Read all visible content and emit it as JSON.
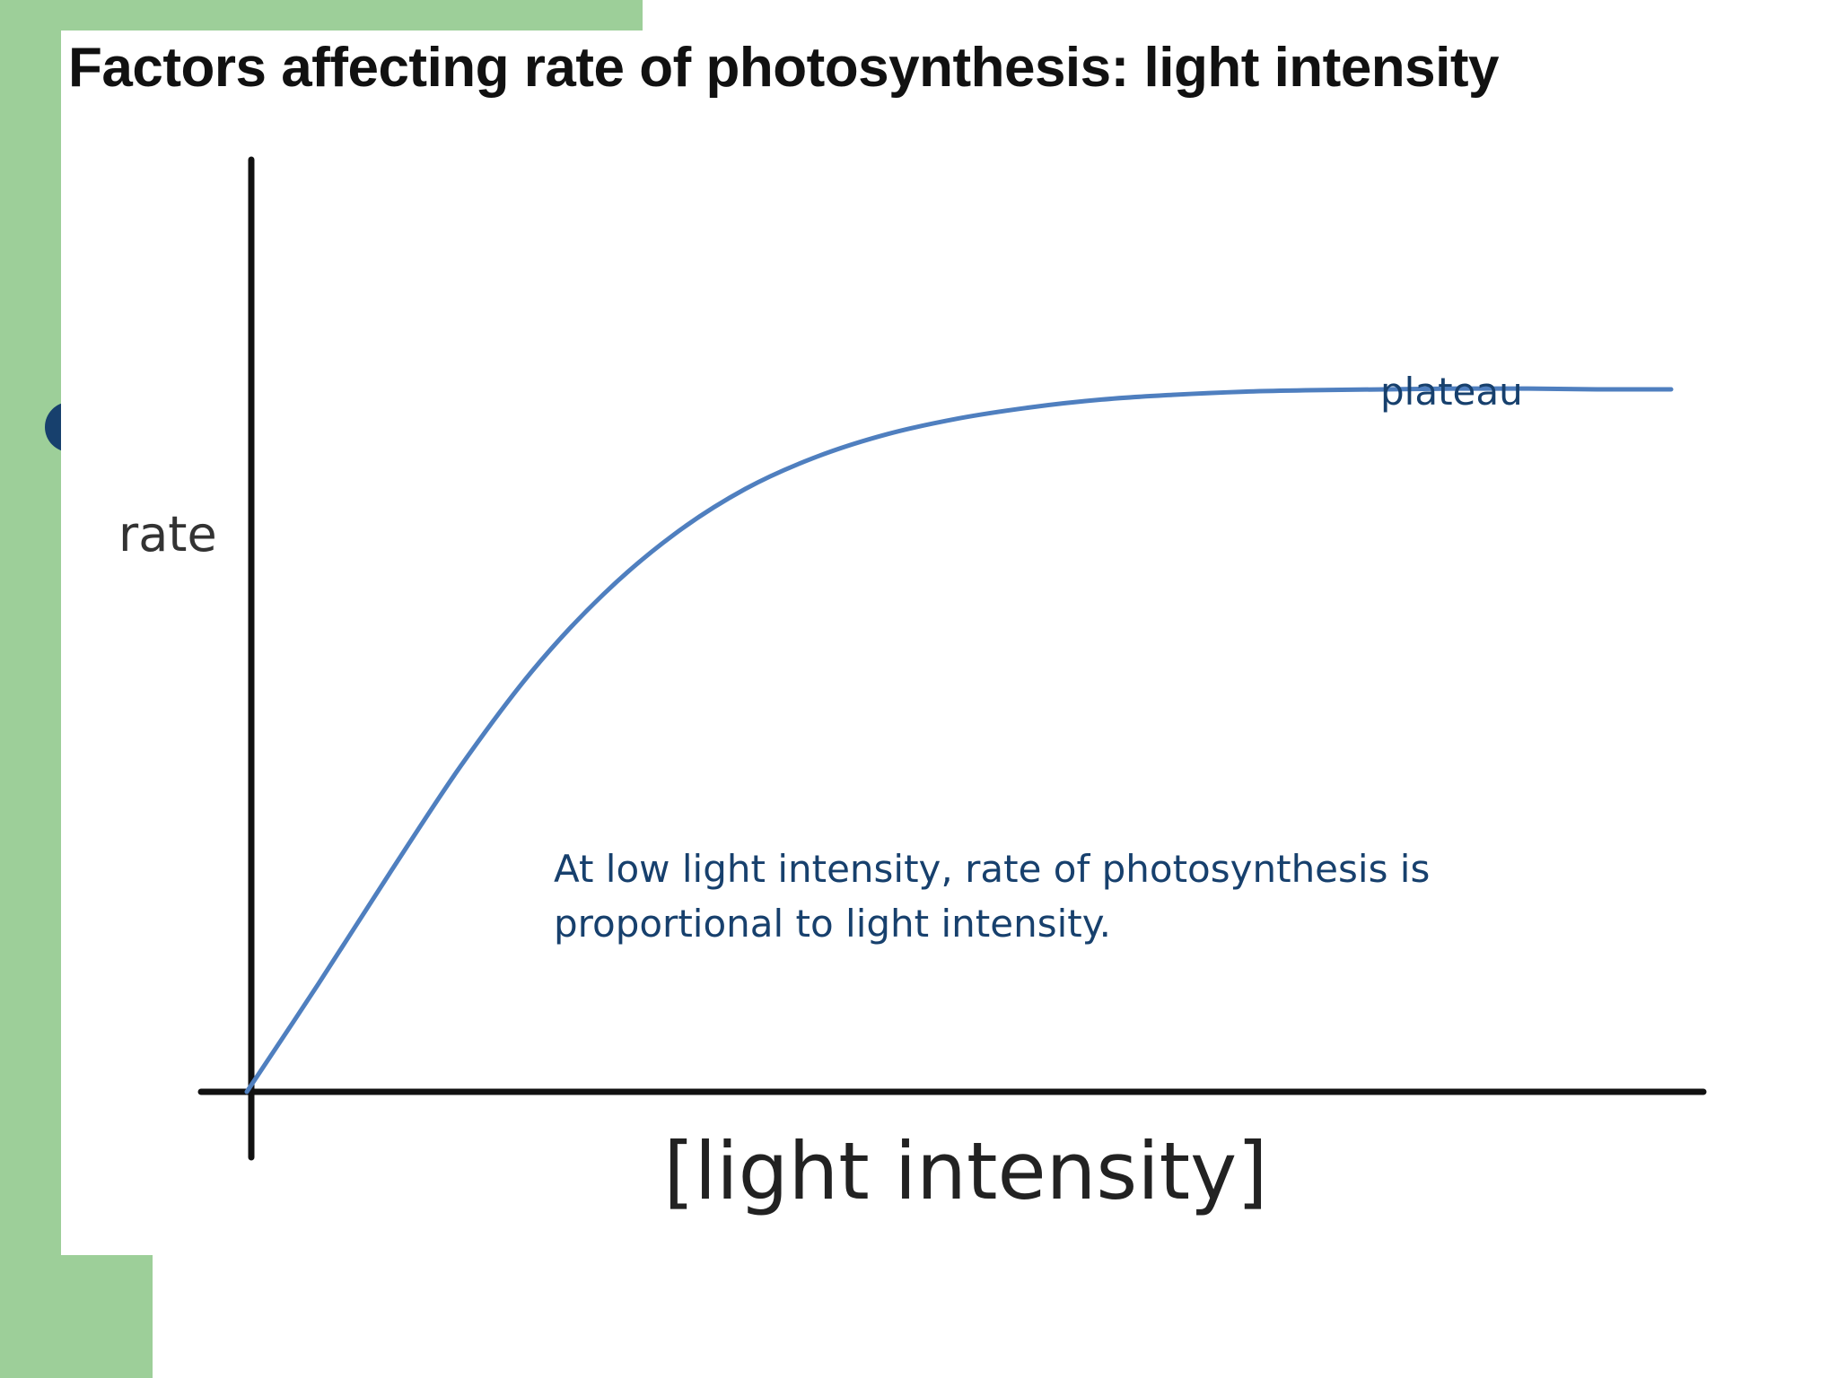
{
  "slide": {
    "title": "Factors affecting rate of photosynthesis: light intensity"
  },
  "chart_data": {
    "type": "line",
    "title": "Factors affecting rate of photosynthesis: light intensity",
    "xlabel": "[light intensity]",
    "ylabel": "rate",
    "axes_ticks": false,
    "grid": false,
    "series": [
      {
        "color": "#4f7fbf",
        "x": [
          0,
          0.05,
          0.1,
          0.15,
          0.2,
          0.25,
          0.3,
          0.35,
          0.4,
          0.45,
          0.5,
          0.55,
          0.6,
          0.65,
          0.7,
          0.75,
          0.8,
          0.85,
          0.9,
          0.95,
          1.0
        ],
        "y": [
          0.0,
          0.137,
          0.278,
          0.415,
          0.536,
          0.634,
          0.711,
          0.769,
          0.81,
          0.839,
          0.859,
          0.873,
          0.883,
          0.889,
          0.893,
          0.895,
          0.896,
          0.897,
          0.897,
          0.896,
          0.896
        ]
      }
    ],
    "annotations": [
      {
        "id": "plateau",
        "text": "plateau"
      },
      {
        "id": "proportional",
        "lines": [
          "At low light intensity, rate of photosynthesis is",
          "proportional to light intensity."
        ]
      }
    ]
  },
  "colors": {
    "accent_green": "#9dcf99",
    "dot_navy": "#17406d",
    "annotation_text": "#17406d",
    "curve": "#4f7fbf"
  }
}
